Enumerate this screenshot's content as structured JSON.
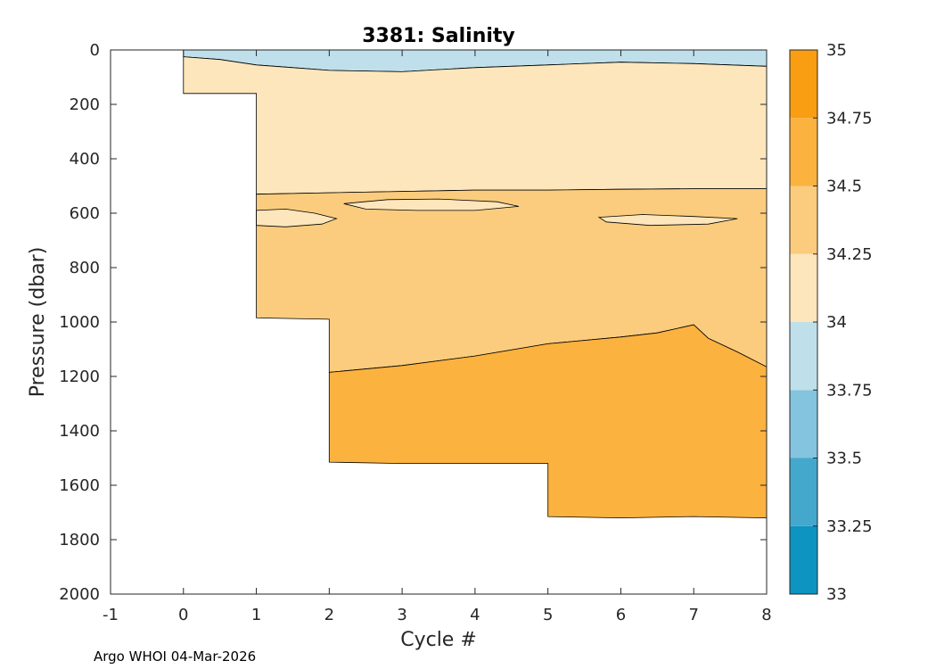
{
  "chart_data": {
    "type": "heatmap",
    "title": "3381:  Salinity",
    "xlabel": "Cycle #",
    "ylabel": "Pressure (dbar)",
    "xlim": [
      -1,
      8
    ],
    "ylim": [
      0,
      2000
    ],
    "xticks": [
      -1,
      0,
      1,
      2,
      3,
      4,
      5,
      6,
      7,
      8
    ],
    "yticks": [
      0,
      200,
      400,
      600,
      800,
      1000,
      1200,
      1400,
      1600,
      1800,
      2000
    ],
    "colorbar": {
      "range": [
        33,
        35
      ],
      "ticks": [
        "33",
        "33.25",
        "33.5",
        "33.75",
        "34",
        "34.25",
        "34.5",
        "34.75",
        "35"
      ],
      "bands": [
        {
          "low": 33.0,
          "high": 33.25,
          "color": "#0d94c0"
        },
        {
          "low": 33.25,
          "high": 33.5,
          "color": "#44a8cd"
        },
        {
          "low": 33.5,
          "high": 33.75,
          "color": "#84c4df"
        },
        {
          "low": 33.75,
          "high": 34.0,
          "color": "#bfe0ea"
        },
        {
          "low": 34.0,
          "high": 34.25,
          "color": "#fde6bc"
        },
        {
          "low": 34.25,
          "high": 34.5,
          "color": "#fbcc7d"
        },
        {
          "low": 34.5,
          "high": 34.75,
          "color": "#fbb23f"
        },
        {
          "low": 34.75,
          "high": 35.0,
          "color": "#f99e12"
        }
      ]
    },
    "profiles": [
      {
        "cycle": 0,
        "max_pressure": 160
      },
      {
        "cycle": 1,
        "max_pressure": 985
      },
      {
        "cycle": 2,
        "max_pressure": 1515
      },
      {
        "cycle": 3,
        "max_pressure": 1520
      },
      {
        "cycle": 4,
        "max_pressure": 1520
      },
      {
        "cycle": 5,
        "max_pressure": 1715
      },
      {
        "cycle": 6,
        "max_pressure": 1715
      },
      {
        "cycle": 7,
        "max_pressure": 1715
      },
      {
        "cycle": 8,
        "max_pressure": 1715
      }
    ],
    "regions": [
      {
        "name": "band-33.75-34",
        "value_range": [
          33.75,
          34.0
        ],
        "top": [
          [
            0,
            0
          ],
          [
            8,
            0
          ]
        ],
        "bottom": [
          [
            0,
            25
          ],
          [
            0.5,
            35
          ],
          [
            1,
            55
          ],
          [
            1.5,
            65
          ],
          [
            2,
            75
          ],
          [
            3,
            80
          ],
          [
            4,
            65
          ],
          [
            5,
            55
          ],
          [
            6,
            45
          ],
          [
            7,
            50
          ],
          [
            8,
            60
          ]
        ]
      },
      {
        "name": "band-34-34.25",
        "value_range": [
          34.0,
          34.25
        ],
        "top": [
          [
            0,
            25
          ],
          [
            0.5,
            35
          ],
          [
            1,
            55
          ],
          [
            1.5,
            65
          ],
          [
            2,
            75
          ],
          [
            3,
            80
          ],
          [
            4,
            65
          ],
          [
            5,
            55
          ],
          [
            6,
            45
          ],
          [
            7,
            50
          ],
          [
            8,
            60
          ]
        ],
        "bottom": [
          [
            0,
            160
          ],
          [
            1,
            160
          ],
          [
            1,
            530
          ],
          [
            2,
            525
          ],
          [
            3,
            520
          ],
          [
            4,
            515
          ],
          [
            5,
            515
          ],
          [
            6,
            512
          ],
          [
            7,
            510
          ],
          [
            8,
            510
          ]
        ]
      },
      {
        "name": "band-34.25-34.5",
        "value_range": [
          34.25,
          34.5
        ],
        "top": [
          [
            1,
            530
          ],
          [
            2,
            525
          ],
          [
            3,
            520
          ],
          [
            4,
            515
          ],
          [
            5,
            515
          ],
          [
            6,
            512
          ],
          [
            7,
            510
          ],
          [
            8,
            510
          ]
        ],
        "bottom": [
          [
            1,
            985
          ],
          [
            2,
            990
          ],
          [
            2,
            1185
          ],
          [
            3,
            1160
          ],
          [
            4,
            1125
          ],
          [
            5,
            1080
          ],
          [
            6,
            1055
          ],
          [
            6.5,
            1040
          ],
          [
            7,
            1010
          ],
          [
            7.2,
            1060
          ],
          [
            7.6,
            1110
          ],
          [
            8,
            1165
          ]
        ]
      },
      {
        "name": "band-34.5-34.75",
        "value_range": [
          34.5,
          34.75
        ],
        "top": [
          [
            2,
            1185
          ],
          [
            3,
            1160
          ],
          [
            4,
            1125
          ],
          [
            5,
            1080
          ],
          [
            6,
            1055
          ],
          [
            6.5,
            1040
          ],
          [
            7,
            1010
          ],
          [
            7.2,
            1060
          ],
          [
            7.6,
            1110
          ],
          [
            8,
            1165
          ]
        ],
        "bottom": [
          [
            2,
            1515
          ],
          [
            3,
            1520
          ],
          [
            5,
            1520
          ],
          [
            5,
            1715
          ],
          [
            6,
            1720
          ],
          [
            7,
            1715
          ],
          [
            8,
            1720
          ]
        ]
      }
    ],
    "pockets": [
      {
        "name": "pocket-34-34.25-a",
        "value_range": [
          34.0,
          34.25
        ],
        "points": [
          [
            1,
            590
          ],
          [
            1.4,
            585
          ],
          [
            1.8,
            600
          ],
          [
            2.1,
            620
          ],
          [
            1.9,
            640
          ],
          [
            1.4,
            650
          ],
          [
            1,
            645
          ]
        ]
      },
      {
        "name": "pocket-34-34.25-b",
        "value_range": [
          34.0,
          34.25
        ],
        "points": [
          [
            5.7,
            615
          ],
          [
            6.3,
            605
          ],
          [
            7.0,
            612
          ],
          [
            7.6,
            620
          ],
          [
            7.2,
            640
          ],
          [
            6.4,
            645
          ],
          [
            5.8,
            632
          ]
        ]
      },
      {
        "name": "pocket-34-34.25-c",
        "value_range": [
          34.0,
          34.25
        ],
        "points": [
          [
            2.2,
            565
          ],
          [
            2.8,
            550
          ],
          [
            3.5,
            548
          ],
          [
            4.3,
            558
          ],
          [
            4.6,
            575
          ],
          [
            4.0,
            590
          ],
          [
            3.2,
            590
          ],
          [
            2.5,
            585
          ]
        ]
      }
    ]
  },
  "footer_text": "Argo WHOI 04-Mar-2026"
}
